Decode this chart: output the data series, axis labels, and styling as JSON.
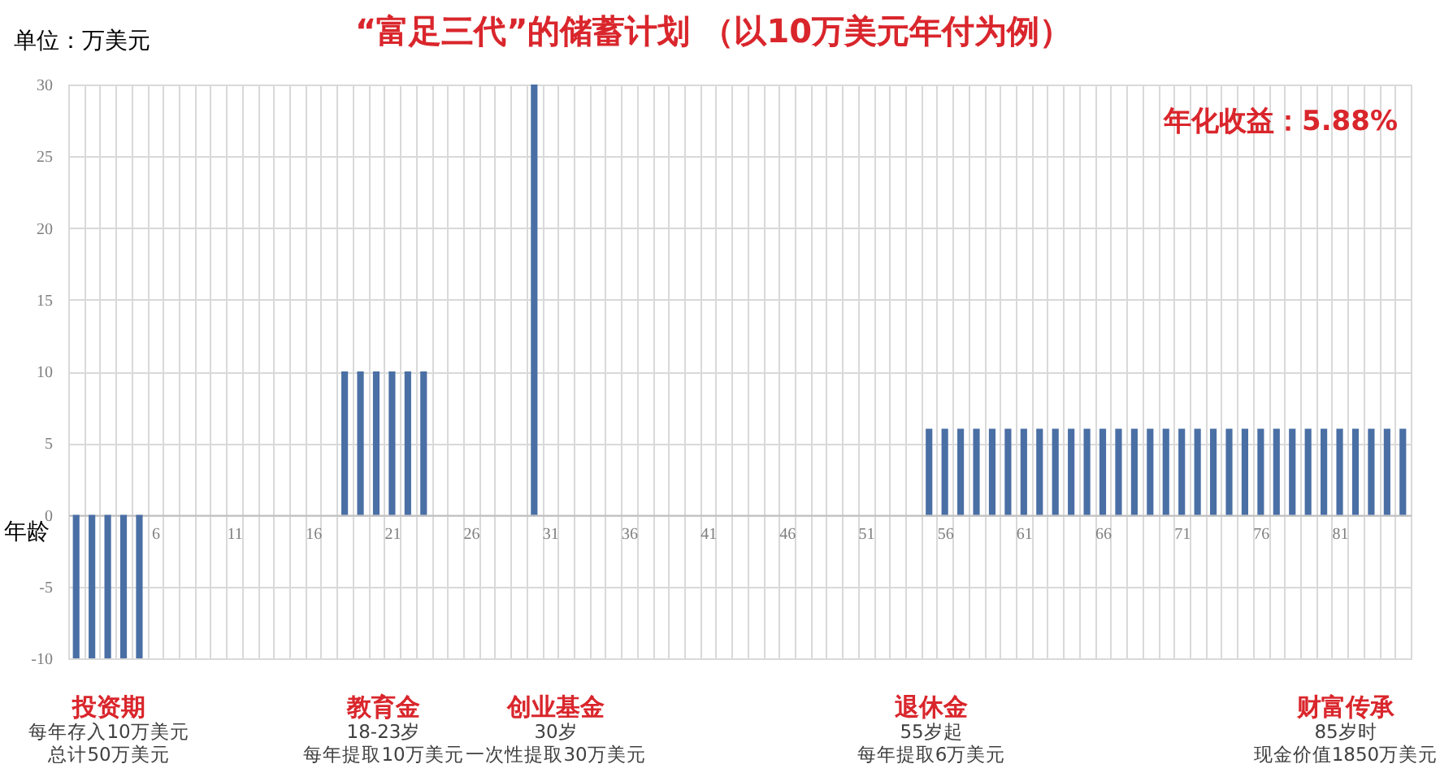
{
  "chart_data": {
    "type": "bar",
    "title": "“富足三代”的储蓄计划 （以10万美元年付为例）",
    "xlabel": "年龄",
    "ylabel": "单位：万美元",
    "categories": [
      null,
      null,
      null,
      null,
      null,
      "6",
      null,
      null,
      null,
      null,
      "11",
      null,
      null,
      null,
      null,
      "16",
      null,
      null,
      null,
      null,
      "21",
      null,
      null,
      null,
      null,
      "26",
      null,
      null,
      null,
      null,
      "31",
      null,
      null,
      null,
      null,
      "36",
      null,
      null,
      null,
      null,
      "41",
      null,
      null,
      null,
      null,
      "46",
      null,
      null,
      null,
      null,
      "51",
      null,
      null,
      null,
      null,
      "56",
      null,
      null,
      null,
      null,
      "61",
      null,
      null,
      null,
      null,
      "66",
      null,
      null,
      null,
      null,
      "71",
      null,
      null,
      null,
      null,
      "76",
      null,
      null,
      null,
      null,
      "81",
      null,
      null,
      null,
      null
    ],
    "values": [
      -10,
      -10,
      -10,
      -10,
      -10,
      null,
      null,
      null,
      null,
      null,
      null,
      null,
      null,
      null,
      null,
      null,
      null,
      10,
      10,
      10,
      10,
      10,
      10,
      null,
      null,
      null,
      null,
      null,
      null,
      30,
      null,
      null,
      null,
      null,
      null,
      null,
      null,
      null,
      null,
      null,
      null,
      null,
      null,
      null,
      null,
      null,
      null,
      null,
      null,
      null,
      null,
      null,
      null,
      null,
      6,
      6,
      6,
      6,
      6,
      6,
      6,
      6,
      6,
      6,
      6,
      6,
      6,
      6,
      6,
      6,
      6,
      6,
      6,
      6,
      6,
      6,
      6,
      6,
      6,
      6,
      6,
      6,
      6,
      6,
      6
    ],
    "color": "#4a6fa5",
    "ylim": [
      -10,
      30
    ],
    "yticks": [
      -10,
      -5,
      0,
      5,
      10,
      15,
      20,
      25,
      30
    ],
    "grid": true,
    "annotations": [
      "投资期",
      "每年存入10万美元",
      "总计50万美元",
      "教育金",
      "18-23岁",
      "每年提取10万美元",
      "创业基金",
      "30岁",
      "一次性提取30万美元",
      "退休金",
      "55岁起",
      "每年提取6万美元",
      "财富传承",
      "85岁时",
      "现金价值1850万美元",
      "年化收益：5.88%"
    ]
  }
}
